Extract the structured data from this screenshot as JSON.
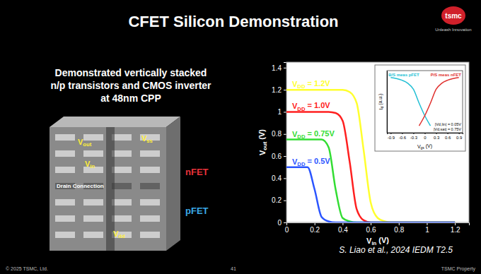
{
  "slide": {
    "title": "CFET Silicon Demonstration",
    "logo": {
      "name": "tsmc",
      "tagline": "Unleash Innovation"
    },
    "description": [
      "Demonstrated vertically stacked",
      "n/p transistors and CMOS inverter",
      "at 48nm CPP"
    ],
    "image_labels": [
      "Vout",
      "Vss",
      "Vin",
      "Drain Connection",
      "Vdd"
    ],
    "device_labels": [
      {
        "text": "nFET",
        "color": "#e8323a"
      },
      {
        "text": "pFET",
        "color": "#3aa8e8"
      }
    ],
    "citation": "S. Liao et al., 2024 IEDM T2.5",
    "footer": {
      "copyright": "© 2025 TSMC, Ltd.",
      "page": 41,
      "property": "TSMC Property"
    }
  },
  "chart_data": [
    {
      "type": "line",
      "xlabel": "Vin (V)",
      "ylabel": "Vout (V)",
      "x": [
        0,
        0.05,
        0.1,
        0.15,
        0.2,
        0.25,
        0.3,
        0.35,
        0.4,
        0.45,
        0.5,
        0.55,
        0.6,
        0.65,
        0.7,
        0.75,
        0.8,
        0.85,
        0.9,
        0.95,
        1.0,
        1.05,
        1.1,
        1.15,
        1.2
      ],
      "series": [
        {
          "name": "VDD = 1.2V",
          "color": "#ffff2e",
          "values": [
            1.2,
            1.2,
            1.2,
            1.2,
            1.2,
            1.2,
            1.2,
            1.2,
            1.2,
            1.18,
            1.08,
            0.65,
            0.18,
            0.04,
            0.01,
            0,
            0,
            0,
            0,
            0,
            0,
            0,
            0,
            0,
            0
          ]
        },
        {
          "name": "VDD = 1.0V",
          "color": "#ff2020",
          "values": [
            1.0,
            1.0,
            1.0,
            1.0,
            1.0,
            1.0,
            1.0,
            0.99,
            0.92,
            0.55,
            0.12,
            0.02,
            0,
            0,
            0,
            0,
            0,
            0,
            0,
            0,
            0,
            0,
            0,
            0,
            0
          ]
        },
        {
          "name": "VDD = 0.75V",
          "color": "#33dd33",
          "values": [
            0.75,
            0.75,
            0.75,
            0.75,
            0.75,
            0.75,
            0.68,
            0.3,
            0.04,
            0.01,
            0,
            0,
            0,
            0,
            0,
            0,
            0,
            0,
            0,
            0,
            0,
            0,
            0,
            0,
            0
          ]
        },
        {
          "name": "VDD = 0.5V",
          "color": "#2b55ff",
          "values": [
            0.5,
            0.5,
            0.5,
            0.5,
            0.3,
            0.05,
            0.01,
            0,
            0,
            0,
            0,
            0,
            0,
            0,
            0,
            0,
            0,
            0,
            0,
            0,
            0,
            0,
            0,
            0,
            0
          ]
        }
      ],
      "xlim": [
        0,
        1.3
      ],
      "xticks": [
        0,
        0.2,
        0.4,
        0.6,
        0.8,
        1,
        1.2
      ],
      "ylim": [
        0,
        1.45
      ],
      "yticks": [
        0,
        0.2,
        0.4,
        0.6,
        0.8,
        1,
        1.2,
        1.4
      ]
    },
    {
      "type": "line",
      "xlabel": "Vgs (V)",
      "ylabel": "Id (a.u.)",
      "log": "y",
      "tick_labels": "x",
      "legend": "top",
      "series": [
        {
          "name": "B/S meas pFET",
          "color": "#22bfd4",
          "x": [
            -0.9,
            -0.75,
            -0.6,
            -0.45,
            -0.3,
            -0.15,
            0,
            0.15
          ],
          "values": [
            0.0001,
            7e-05,
            4e-05,
            1.5e-05,
            2e-06,
            2e-08,
            3e-10,
            1e-11
          ]
        },
        {
          "name": "P/S meas nFET",
          "color": "#e0302e",
          "x": [
            -0.15,
            0,
            0.15,
            0.3,
            0.45,
            0.6,
            0.75,
            0.9
          ],
          "values": [
            1e-11,
            3e-10,
            2e-08,
            2e-06,
            1.5e-05,
            4e-05,
            7e-05,
            0.0001
          ]
        }
      ],
      "xlim": [
        -1,
        1
      ],
      "xticks": [
        -0.9,
        -0.6,
        -0.3,
        0,
        0.3,
        0.6,
        0.9
      ],
      "ylim": [
        1e-12,
        0.001
      ],
      "annotations": [
        "|Vd,lin| = 0.05V",
        "|Vd,sat| = 0.75V"
      ]
    }
  ]
}
